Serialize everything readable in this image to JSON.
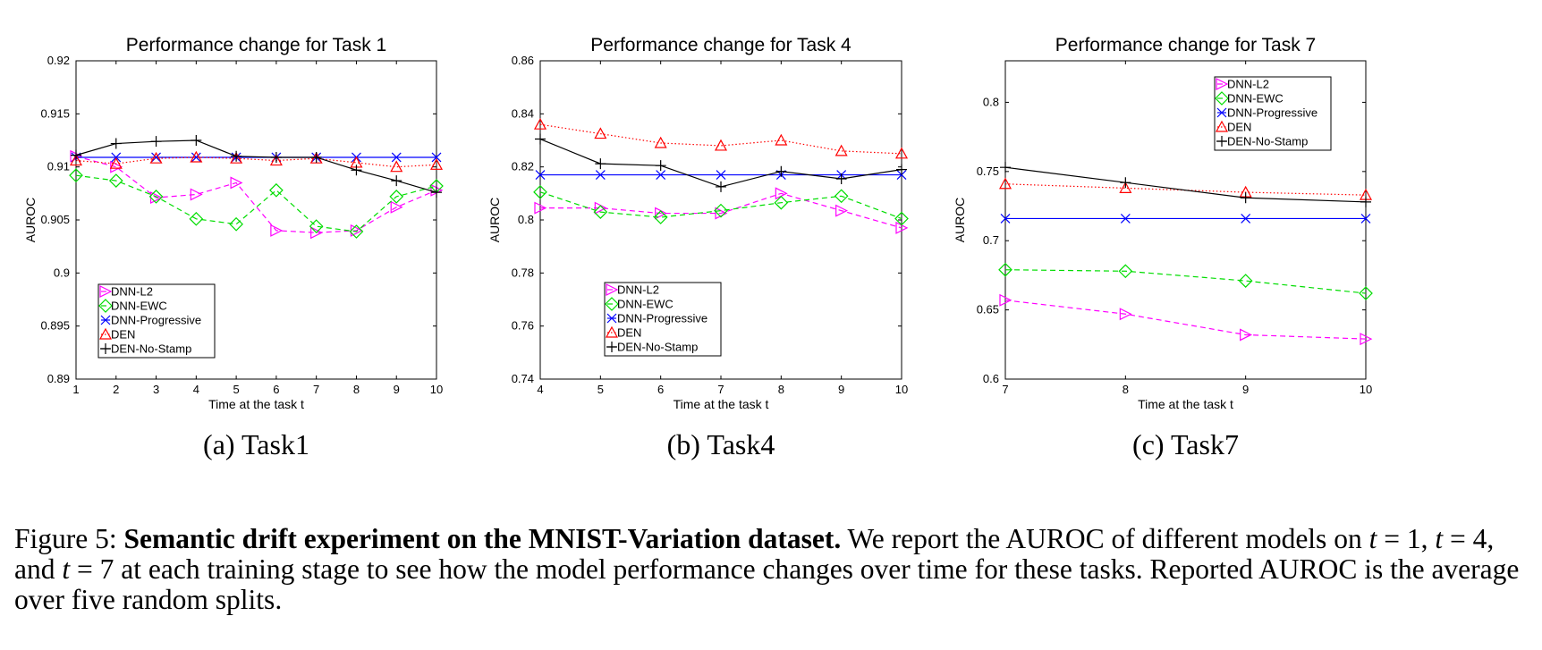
{
  "chart_data": [
    {
      "type": "line",
      "title": "Performance change for Task 1",
      "xlabel": "Time at the task t",
      "ylabel": "AUROC",
      "xlim": [
        1,
        10
      ],
      "ylim": [
        0.89,
        0.92
      ],
      "xticks": [
        1,
        2,
        3,
        4,
        5,
        6,
        7,
        8,
        9,
        10
      ],
      "yticks": [
        0.89,
        0.895,
        0.9,
        0.905,
        0.91,
        0.915,
        0.92
      ],
      "ytick_labels": [
        "0.89",
        "0.895",
        "0.9",
        "0.905",
        "0.91",
        "0.915",
        "0.92"
      ],
      "legend_position": "bottom-left",
      "grid": false,
      "sub_caption": "(a) Task1",
      "series": [
        {
          "name": "DNN-L2",
          "color": "#ff00ff",
          "marker": "triangle-right",
          "line": "dashed",
          "x": [
            1,
            2,
            3,
            4,
            5,
            6,
            7,
            8,
            9,
            10
          ],
          "y": [
            0.911,
            0.91,
            0.9071,
            0.9074,
            0.9085,
            0.904,
            0.9038,
            0.904,
            0.9062,
            0.9078
          ]
        },
        {
          "name": "DNN-EWC",
          "color": "#00dd00",
          "marker": "diamond",
          "line": "dashed",
          "x": [
            1,
            2,
            3,
            4,
            5,
            6,
            7,
            8,
            9,
            10
          ],
          "y": [
            0.9092,
            0.9087,
            0.9072,
            0.9051,
            0.9046,
            0.9078,
            0.9044,
            0.9039,
            0.9072,
            0.9082
          ]
        },
        {
          "name": "DNN-Progressive",
          "color": "#0000ff",
          "marker": "x",
          "line": "solid",
          "x": [
            1,
            2,
            3,
            4,
            5,
            6,
            7,
            8,
            9,
            10
          ],
          "y": [
            0.9109,
            0.9109,
            0.9109,
            0.9109,
            0.9109,
            0.9109,
            0.9109,
            0.9109,
            0.9109,
            0.9109
          ]
        },
        {
          "name": "DEN",
          "color": "#ff0000",
          "marker": "triangle-up",
          "line": "dotted",
          "x": [
            1,
            2,
            3,
            4,
            5,
            6,
            7,
            8,
            9,
            10
          ],
          "y": [
            0.9106,
            0.9103,
            0.9108,
            0.9109,
            0.9108,
            0.9106,
            0.9108,
            0.9104,
            0.91,
            0.9102
          ]
        },
        {
          "name": "DEN-No-Stamp",
          "color": "#000000",
          "marker": "plus",
          "line": "solid",
          "x": [
            1,
            2,
            3,
            4,
            5,
            6,
            7,
            8,
            9,
            10
          ],
          "y": [
            0.9111,
            0.9122,
            0.9124,
            0.9125,
            0.911,
            0.9109,
            0.9109,
            0.9097,
            0.9087,
            0.9076
          ]
        }
      ]
    },
    {
      "type": "line",
      "title": "Performance change for Task 4",
      "xlabel": "Time at the task t",
      "ylabel": "AUROC",
      "xlim": [
        4,
        10
      ],
      "ylim": [
        0.74,
        0.86
      ],
      "xticks": [
        4,
        5,
        6,
        7,
        8,
        9,
        10
      ],
      "yticks": [
        0.74,
        0.76,
        0.78,
        0.8,
        0.82,
        0.84,
        0.86
      ],
      "ytick_labels": [
        "0.74",
        "0.76",
        "0.78",
        "0.8",
        "0.82",
        "0.84",
        "0.86"
      ],
      "legend_position": "bottom-center",
      "grid": false,
      "sub_caption": "(b) Task4",
      "series": [
        {
          "name": "DNN-L2",
          "color": "#ff00ff",
          "marker": "triangle-right",
          "line": "dashed",
          "x": [
            4,
            5,
            6,
            7,
            8,
            9,
            10
          ],
          "y": [
            0.8045,
            0.8045,
            0.8025,
            0.8025,
            0.81,
            0.8035,
            0.797
          ]
        },
        {
          "name": "DNN-EWC",
          "color": "#00dd00",
          "marker": "diamond",
          "line": "dashed",
          "x": [
            4,
            5,
            6,
            7,
            8,
            9,
            10
          ],
          "y": [
            0.8105,
            0.803,
            0.801,
            0.8035,
            0.8065,
            0.809,
            0.8005
          ]
        },
        {
          "name": "DNN-Progressive",
          "color": "#0000ff",
          "marker": "x",
          "line": "solid",
          "x": [
            4,
            5,
            6,
            7,
            8,
            9,
            10
          ],
          "y": [
            0.817,
            0.817,
            0.817,
            0.817,
            0.817,
            0.817,
            0.817
          ]
        },
        {
          "name": "DEN",
          "color": "#ff0000",
          "marker": "triangle-up",
          "line": "dotted",
          "x": [
            4,
            5,
            6,
            7,
            8,
            9,
            10
          ],
          "y": [
            0.836,
            0.8325,
            0.829,
            0.828,
            0.83,
            0.826,
            0.825
          ]
        },
        {
          "name": "DEN-No-Stamp",
          "color": "#000000",
          "marker": "plus",
          "line": "solid",
          "x": [
            4,
            5,
            6,
            7,
            8,
            9,
            10
          ],
          "y": [
            0.8305,
            0.8212,
            0.8205,
            0.8125,
            0.8183,
            0.8155,
            0.819
          ]
        }
      ]
    },
    {
      "type": "line",
      "title": "Performance change for Task 7",
      "xlabel": "Time at the task t",
      "ylabel": "AUROC",
      "xlim": [
        7,
        10
      ],
      "ylim": [
        0.6,
        0.83
      ],
      "xticks": [
        7,
        8,
        9,
        10
      ],
      "yticks": [
        0.6,
        0.65,
        0.7,
        0.75,
        0.8
      ],
      "ytick_labels": [
        "0.6",
        "0.65",
        "0.7",
        "0.75",
        "0.8"
      ],
      "legend_position": "top-right",
      "grid": false,
      "sub_caption": "(c) Task7",
      "series": [
        {
          "name": "DNN-L2",
          "color": "#ff00ff",
          "marker": "triangle-right",
          "line": "dashed",
          "x": [
            7,
            8,
            9,
            10
          ],
          "y": [
            0.657,
            0.647,
            0.632,
            0.629
          ]
        },
        {
          "name": "DNN-EWC",
          "color": "#00dd00",
          "marker": "diamond",
          "line": "dashed",
          "x": [
            7,
            8,
            9,
            10
          ],
          "y": [
            0.679,
            0.678,
            0.671,
            0.662
          ]
        },
        {
          "name": "DNN-Progressive",
          "color": "#0000ff",
          "marker": "x",
          "line": "solid",
          "x": [
            7,
            8,
            9,
            10
          ],
          "y": [
            0.716,
            0.716,
            0.716,
            0.716
          ]
        },
        {
          "name": "DEN",
          "color": "#ff0000",
          "marker": "triangle-up",
          "line": "dotted",
          "x": [
            7,
            8,
            9,
            10
          ],
          "y": [
            0.741,
            0.738,
            0.735,
            0.733
          ]
        },
        {
          "name": "DEN-No-Stamp",
          "color": "#000000",
          "marker": "plus",
          "line": "solid",
          "x": [
            7,
            8,
            9,
            10
          ],
          "y": [
            0.753,
            0.742,
            0.731,
            0.728
          ]
        }
      ]
    }
  ],
  "caption": {
    "label": "Figure 5:",
    "bold": "Semantic drift experiment on the MNIST-Variation dataset.",
    "p1": " We report the AUROC of different models on ",
    "m1": "t",
    "eq1": " = 1, ",
    "m2": "t",
    "eq2": " = 4, and ",
    "m3": "t",
    "eq3": " = 7",
    "p2": " at each training stage to see how the model performance changes over time for these tasks. Reported AUROC is the average over five random splits."
  }
}
